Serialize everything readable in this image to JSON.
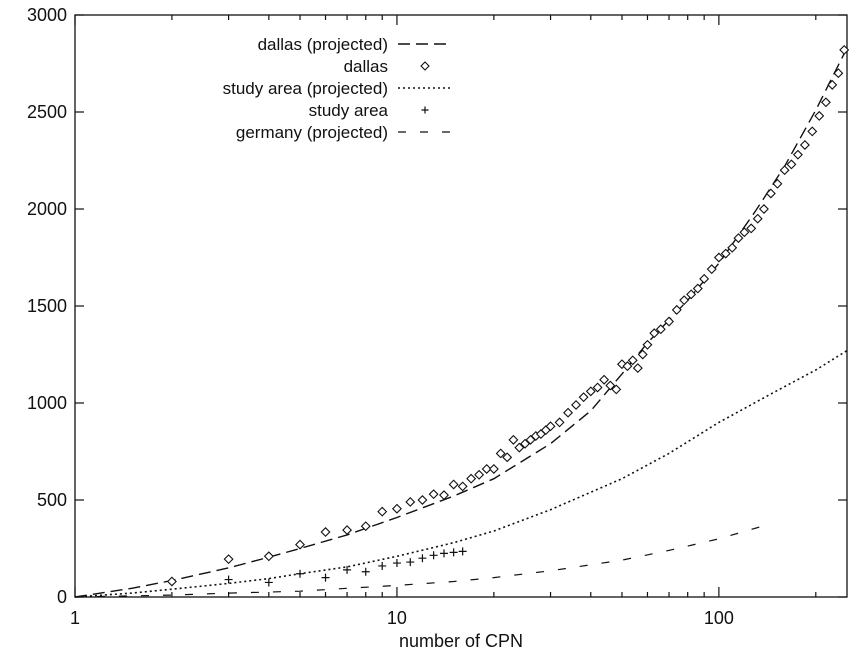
{
  "chart_data": {
    "type": "line",
    "xlabel": "number of CPN",
    "ylabel": "",
    "title": "",
    "xscale": "log",
    "xlim": [
      1,
      250
    ],
    "ylim": [
      0,
      3000
    ],
    "xticks": [
      {
        "value": 1,
        "label": "1"
      },
      {
        "value": 10,
        "label": "10"
      },
      {
        "value": 100,
        "label": "100"
      }
    ],
    "yticks": [
      {
        "value": 0,
        "label": "0"
      },
      {
        "value": 500,
        "label": "500"
      },
      {
        "value": 1000,
        "label": "1000"
      },
      {
        "value": 1500,
        "label": "1500"
      },
      {
        "value": 2000,
        "label": "2000"
      },
      {
        "value": 2500,
        "label": "2500"
      },
      {
        "value": 3000,
        "label": "3000"
      }
    ],
    "grid": false,
    "legend_position": "top-left",
    "series": [
      {
        "name": "dallas (projected)",
        "style": "long-dash",
        "x": [
          1,
          1.5,
          2,
          3,
          4,
          5,
          7,
          10,
          15,
          20,
          30,
          40,
          50,
          60,
          80,
          100,
          130,
          160,
          200,
          250
        ],
        "y": [
          0,
          45,
          85,
          150,
          205,
          250,
          320,
          410,
          520,
          610,
          790,
          960,
          1150,
          1310,
          1530,
          1720,
          1990,
          2220,
          2510,
          2830
        ]
      },
      {
        "name": "dallas",
        "style": "diamond",
        "x": [
          2,
          3,
          4,
          5,
          6,
          7,
          8,
          9,
          10,
          11,
          12,
          13,
          14,
          15,
          16,
          17,
          18,
          19,
          20,
          21,
          22,
          23,
          24,
          25,
          26,
          27,
          28,
          29,
          30,
          32,
          34,
          36,
          38,
          40,
          42,
          44,
          46,
          48,
          50,
          52,
          54,
          56,
          58,
          60,
          63,
          66,
          70,
          74,
          78,
          82,
          86,
          90,
          95,
          100,
          105,
          110,
          115,
          120,
          126,
          132,
          138,
          145,
          152,
          160,
          168,
          176,
          185,
          195,
          205,
          215,
          225,
          235,
          245
        ],
        "y": [
          80,
          195,
          210,
          270,
          335,
          345,
          365,
          440,
          455,
          490,
          500,
          530,
          525,
          580,
          570,
          610,
          630,
          660,
          660,
          740,
          720,
          810,
          770,
          790,
          810,
          830,
          840,
          860,
          880,
          900,
          950,
          990,
          1030,
          1060,
          1080,
          1120,
          1090,
          1070,
          1200,
          1190,
          1220,
          1180,
          1250,
          1300,
          1360,
          1380,
          1420,
          1480,
          1530,
          1560,
          1590,
          1640,
          1690,
          1750,
          1770,
          1800,
          1850,
          1880,
          1900,
          1950,
          2000,
          2080,
          2130,
          2200,
          2230,
          2280,
          2330,
          2400,
          2480,
          2550,
          2640,
          2700,
          2820
        ]
      },
      {
        "name": "study area (projected)",
        "style": "dotted",
        "x": [
          1,
          1.5,
          2,
          3,
          4,
          5,
          7,
          10,
          15,
          20,
          30,
          50,
          70,
          100,
          150,
          200,
          250
        ],
        "y": [
          0,
          20,
          40,
          70,
          95,
          120,
          155,
          210,
          280,
          340,
          450,
          610,
          740,
          900,
          1060,
          1170,
          1270
        ]
      },
      {
        "name": "study area",
        "style": "plus",
        "x": [
          3,
          4,
          5,
          6,
          7,
          8,
          9,
          10,
          11,
          12,
          13,
          14,
          15,
          16
        ],
        "y": [
          90,
          75,
          120,
          100,
          140,
          130,
          160,
          175,
          180,
          200,
          215,
          225,
          230,
          235
        ]
      },
      {
        "name": "germany (projected)",
        "style": "dash-dot",
        "x": [
          1,
          2,
          3,
          5,
          7,
          10,
          15,
          20,
          30,
          50,
          70,
          100,
          140
        ],
        "y": [
          0,
          10,
          20,
          30,
          45,
          60,
          80,
          100,
          135,
          190,
          240,
          300,
          370
        ]
      }
    ]
  }
}
